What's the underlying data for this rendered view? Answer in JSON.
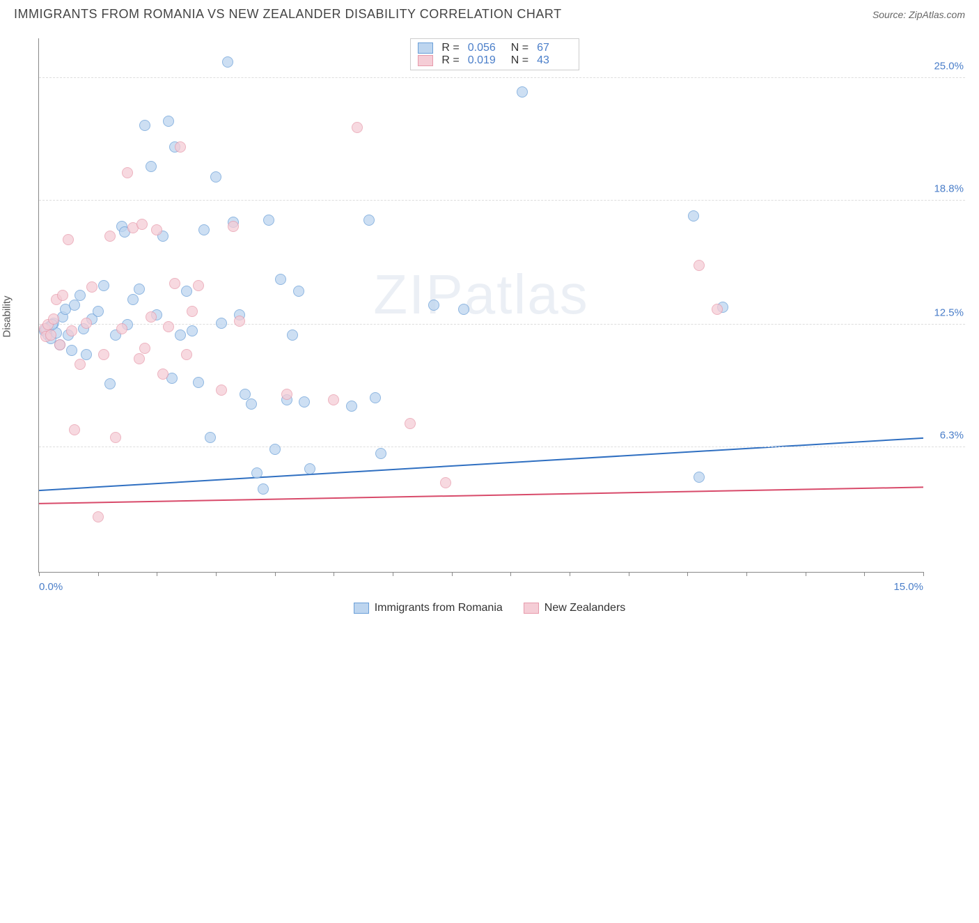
{
  "header": {
    "title": "IMMIGRANTS FROM ROMANIA VS NEW ZEALANDER DISABILITY CORRELATION CHART",
    "source_prefix": "Source: ",
    "source_name": "ZipAtlas.com"
  },
  "watermark": "ZIPatlas",
  "y_axis": {
    "label": "Disability"
  },
  "series": [
    {
      "key": "romania",
      "label": "Immigrants from Romania",
      "fill": "#bdd5ef",
      "stroke": "#6a9fd8",
      "trend_color": "#2f6fc1",
      "r_value": "0.056",
      "n_value": "67",
      "trend": {
        "y1_pct": 13.2,
        "y2_pct": 14.8
      },
      "points": [
        {
          "x": 0.1,
          "y": 12.2
        },
        {
          "x": 0.15,
          "y": 12.0
        },
        {
          "x": 0.18,
          "y": 12.4
        },
        {
          "x": 0.2,
          "y": 11.8
        },
        {
          "x": 0.25,
          "y": 12.6
        },
        {
          "x": 0.3,
          "y": 12.1
        },
        {
          "x": 0.35,
          "y": 11.5
        },
        {
          "x": 0.4,
          "y": 12.9
        },
        {
          "x": 0.45,
          "y": 13.3
        },
        {
          "x": 0.5,
          "y": 12.0
        },
        {
          "x": 0.55,
          "y": 11.2
        },
        {
          "x": 0.6,
          "y": 13.5
        },
        {
          "x": 0.7,
          "y": 14.0
        },
        {
          "x": 0.75,
          "y": 12.3
        },
        {
          "x": 0.8,
          "y": 11.0
        },
        {
          "x": 0.9,
          "y": 12.8
        },
        {
          "x": 1.0,
          "y": 13.2
        },
        {
          "x": 1.1,
          "y": 14.5
        },
        {
          "x": 1.2,
          "y": 9.5
        },
        {
          "x": 1.3,
          "y": 12.0
        },
        {
          "x": 1.4,
          "y": 17.5
        },
        {
          "x": 1.45,
          "y": 17.2
        },
        {
          "x": 1.5,
          "y": 12.5
        },
        {
          "x": 1.6,
          "y": 13.8
        },
        {
          "x": 1.7,
          "y": 14.3
        },
        {
          "x": 1.8,
          "y": 22.6
        },
        {
          "x": 1.9,
          "y": 20.5
        },
        {
          "x": 2.0,
          "y": 13.0
        },
        {
          "x": 2.1,
          "y": 17.0
        },
        {
          "x": 2.2,
          "y": 22.8
        },
        {
          "x": 2.25,
          "y": 9.8
        },
        {
          "x": 2.3,
          "y": 21.5
        },
        {
          "x": 2.4,
          "y": 12.0
        },
        {
          "x": 2.5,
          "y": 14.2
        },
        {
          "x": 2.6,
          "y": 12.2
        },
        {
          "x": 2.7,
          "y": 9.6
        },
        {
          "x": 2.8,
          "y": 17.3
        },
        {
          "x": 2.9,
          "y": 6.8
        },
        {
          "x": 3.0,
          "y": 20.0
        },
        {
          "x": 3.1,
          "y": 12.6
        },
        {
          "x": 3.2,
          "y": 25.8
        },
        {
          "x": 3.3,
          "y": 17.7
        },
        {
          "x": 3.4,
          "y": 13.0
        },
        {
          "x": 3.5,
          "y": 9.0
        },
        {
          "x": 3.6,
          "y": 8.5
        },
        {
          "x": 3.7,
          "y": 5.0
        },
        {
          "x": 3.8,
          "y": 4.2
        },
        {
          "x": 3.9,
          "y": 17.8
        },
        {
          "x": 4.0,
          "y": 6.2
        },
        {
          "x": 4.1,
          "y": 14.8
        },
        {
          "x": 4.2,
          "y": 8.7
        },
        {
          "x": 4.3,
          "y": 12.0
        },
        {
          "x": 4.4,
          "y": 14.2
        },
        {
          "x": 4.5,
          "y": 8.6
        },
        {
          "x": 4.6,
          "y": 5.2
        },
        {
          "x": 5.3,
          "y": 8.4
        },
        {
          "x": 5.6,
          "y": 17.8
        },
        {
          "x": 5.7,
          "y": 8.8
        },
        {
          "x": 5.8,
          "y": 6.0
        },
        {
          "x": 6.7,
          "y": 13.5
        },
        {
          "x": 7.2,
          "y": 13.3
        },
        {
          "x": 8.2,
          "y": 24.3
        },
        {
          "x": 11.1,
          "y": 18.0
        },
        {
          "x": 11.2,
          "y": 4.8
        },
        {
          "x": 11.6,
          "y": 13.4
        },
        {
          "x": 0.12,
          "y": 12.3
        },
        {
          "x": 0.22,
          "y": 12.5
        }
      ]
    },
    {
      "key": "nz",
      "label": "New Zealanders",
      "fill": "#f5cdd6",
      "stroke": "#e79aab",
      "trend_color": "#d84a6a",
      "r_value": "0.019",
      "n_value": "43",
      "trend": {
        "y1_pct": 12.8,
        "y2_pct": 13.3
      },
      "points": [
        {
          "x": 0.1,
          "y": 12.3
        },
        {
          "x": 0.12,
          "y": 11.9
        },
        {
          "x": 0.15,
          "y": 12.5
        },
        {
          "x": 0.2,
          "y": 12.0
        },
        {
          "x": 0.25,
          "y": 12.8
        },
        {
          "x": 0.3,
          "y": 13.8
        },
        {
          "x": 0.35,
          "y": 11.5
        },
        {
          "x": 0.4,
          "y": 14.0
        },
        {
          "x": 0.5,
          "y": 16.8
        },
        {
          "x": 0.55,
          "y": 12.2
        },
        {
          "x": 0.6,
          "y": 7.2
        },
        {
          "x": 0.7,
          "y": 10.5
        },
        {
          "x": 0.8,
          "y": 12.6
        },
        {
          "x": 0.9,
          "y": 14.4
        },
        {
          "x": 1.0,
          "y": 2.8
        },
        {
          "x": 1.1,
          "y": 11.0
        },
        {
          "x": 1.2,
          "y": 17.0
        },
        {
          "x": 1.3,
          "y": 6.8
        },
        {
          "x": 1.4,
          "y": 12.3
        },
        {
          "x": 1.5,
          "y": 20.2
        },
        {
          "x": 1.6,
          "y": 17.4
        },
        {
          "x": 1.7,
          "y": 10.8
        },
        {
          "x": 1.75,
          "y": 17.6
        },
        {
          "x": 1.8,
          "y": 11.3
        },
        {
          "x": 1.9,
          "y": 12.9
        },
        {
          "x": 2.0,
          "y": 17.3
        },
        {
          "x": 2.1,
          "y": 10.0
        },
        {
          "x": 2.2,
          "y": 12.4
        },
        {
          "x": 2.3,
          "y": 14.6
        },
        {
          "x": 2.4,
          "y": 21.5
        },
        {
          "x": 2.5,
          "y": 11.0
        },
        {
          "x": 2.6,
          "y": 13.2
        },
        {
          "x": 2.7,
          "y": 14.5
        },
        {
          "x": 3.1,
          "y": 9.2
        },
        {
          "x": 3.3,
          "y": 17.5
        },
        {
          "x": 3.4,
          "y": 12.7
        },
        {
          "x": 4.2,
          "y": 9.0
        },
        {
          "x": 5.0,
          "y": 8.7
        },
        {
          "x": 5.4,
          "y": 22.5
        },
        {
          "x": 6.3,
          "y": 7.5
        },
        {
          "x": 6.9,
          "y": 4.5
        },
        {
          "x": 11.2,
          "y": 15.5
        },
        {
          "x": 11.5,
          "y": 13.3
        }
      ]
    }
  ],
  "x_axis": {
    "min": 0,
    "max": 15,
    "ticks": [
      0,
      1,
      2,
      3,
      4,
      5,
      6,
      7,
      8,
      9,
      10,
      11,
      12,
      13,
      14,
      15
    ],
    "labels": [
      {
        "pos": 0,
        "text": "0.0%"
      },
      {
        "pos": 15,
        "text": "15.0%"
      }
    ]
  },
  "y_grid": {
    "min": 0,
    "max": 27,
    "lines": [
      {
        "pos": 6.3,
        "text": "6.3%"
      },
      {
        "pos": 12.5,
        "text": "12.5%"
      },
      {
        "pos": 18.8,
        "text": "18.8%"
      },
      {
        "pos": 25.0,
        "text": "25.0%"
      }
    ]
  },
  "legend_labels": {
    "r": "R =",
    "n": "N ="
  }
}
